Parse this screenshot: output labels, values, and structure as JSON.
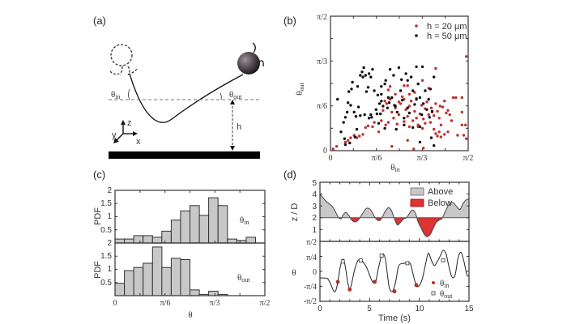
{
  "colors": {
    "red": "#c0302c",
    "red_fill": "#dd3333",
    "black": "#111111",
    "gray_fill": "#c8c8c8",
    "axis": "#333333"
  },
  "panel_a": {
    "label": "(a)",
    "theta_in": "θ",
    "theta_in_sub": "in",
    "theta_out": "θ",
    "theta_out_sub": "out",
    "h_label": "h",
    "axis_x": "x",
    "axis_y": "y",
    "axis_z": "z"
  },
  "chart_data": [
    {
      "id": "b",
      "panel_label": "(b)",
      "type": "scatter",
      "xlabel": "θ",
      "xlabel_sub": "in",
      "ylabel": "θ",
      "ylabel_sub": "out",
      "xlim": [
        0,
        1.5708
      ],
      "ylim": [
        0,
        1.5708
      ],
      "xticks": [
        "0",
        "π/6",
        "π/3",
        "π/2"
      ],
      "yticks": [
        "0",
        "π/6",
        "π/3",
        "π/2"
      ],
      "legend": "top-right",
      "series": [
        {
          "name": "h = 20 μm",
          "color": "#c0302c",
          "points": [
            [
              0.03,
              0.02
            ],
            [
              0.07,
              0.05
            ],
            [
              0.17,
              0.1
            ],
            [
              0.2,
              0.12
            ],
            [
              0.23,
              0.15
            ],
            [
              0.27,
              0.18
            ],
            [
              0.3,
              0.15
            ],
            [
              0.33,
              0.17
            ],
            [
              0.37,
              0.19
            ],
            [
              0.4,
              0.27
            ],
            [
              0.43,
              0.29
            ],
            [
              0.48,
              0.28
            ],
            [
              0.5,
              0.33
            ],
            [
              0.55,
              0.22
            ],
            [
              0.58,
              0.35
            ],
            [
              0.63,
              0.3
            ],
            [
              0.66,
              0.33
            ],
            [
              0.6,
              0.47
            ],
            [
              0.62,
              0.58
            ],
            [
              0.64,
              0.55
            ],
            [
              0.66,
              0.71
            ],
            [
              0.68,
              0.6
            ],
            [
              0.7,
              0.45
            ],
            [
              0.72,
              0.38
            ],
            [
              0.74,
              0.5
            ],
            [
              0.76,
              0.31
            ],
            [
              0.78,
              0.42
            ],
            [
              0.8,
              0.55
            ],
            [
              0.82,
              0.63
            ],
            [
              0.84,
              0.34
            ],
            [
              0.86,
              0.48
            ],
            [
              0.88,
              0.4
            ],
            [
              0.9,
              0.52
            ],
            [
              0.92,
              0.58
            ],
            [
              0.94,
              0.35
            ],
            [
              0.96,
              0.46
            ],
            [
              0.98,
              0.61
            ],
            [
              1.0,
              0.3
            ],
            [
              1.02,
              0.43
            ],
            [
              1.04,
              0.53
            ],
            [
              1.06,
              0.37
            ],
            [
              1.08,
              0.49
            ],
            [
              1.1,
              0.57
            ],
            [
              1.12,
              0.42
            ],
            [
              1.14,
              0.33
            ],
            [
              1.16,
              0.45
            ],
            [
              0.7,
              0.05
            ],
            [
              0.88,
              0.12
            ],
            [
              0.95,
              0.02
            ],
            [
              1.22,
              0.46
            ],
            [
              1.24,
              0.38
            ],
            [
              1.26,
              0.3
            ],
            [
              1.28,
              0.51
            ],
            [
              1.3,
              0.58
            ],
            [
              1.32,
              0.44
            ],
            [
              1.34,
              0.47
            ],
            [
              1.36,
              0.42
            ],
            [
              1.38,
              0.35
            ],
            [
              1.4,
              0.62
            ],
            [
              1.43,
              0.62
            ],
            [
              1.18,
              0.25
            ],
            [
              1.2,
              0.2
            ],
            [
              1.22,
              0.17
            ],
            [
              1.24,
              0.22
            ],
            [
              1.26,
              0.16
            ],
            [
              1.3,
              0.19
            ],
            [
              1.34,
              0.22
            ],
            [
              1.5,
              0.45
            ],
            [
              1.54,
              0.3
            ],
            [
              1.5,
              0.3
            ],
            [
              1.52,
              0.18
            ],
            [
              1.55,
              0.14
            ],
            [
              1.0,
              0.28
            ],
            [
              1.05,
              0.26
            ],
            [
              0.9,
              0.28
            ],
            [
              0.98,
              0.38
            ],
            [
              1.08,
              0.32
            ],
            [
              1.15,
              0.5
            ],
            [
              1.18,
              0.41
            ],
            [
              1.2,
              0.55
            ],
            [
              0.78,
              0.57
            ],
            [
              0.74,
              0.66
            ],
            [
              0.84,
              0.76
            ],
            [
              0.88,
              0.76
            ],
            [
              1.05,
              0.82
            ],
            [
              1.12,
              0.73
            ],
            [
              1.2,
              0.96
            ],
            [
              1.25,
              0.52
            ],
            [
              1.55,
              1.1
            ],
            [
              1.45,
              0.18
            ],
            [
              1.5,
              0.62
            ],
            [
              1.06,
              0.03
            ],
            [
              0.84,
              0.6
            ],
            [
              0.9,
              0.66
            ],
            [
              0.96,
              0.68
            ],
            [
              0.68,
              0.75
            ]
          ]
        },
        {
          "name": "h = 50 μm",
          "color": "#111111",
          "points": [
            [
              0.08,
              0.6
            ],
            [
              0.12,
              0.22
            ],
            [
              0.15,
              0.33
            ],
            [
              0.17,
              0.39
            ],
            [
              0.19,
              0.45
            ],
            [
              0.2,
              0.56
            ],
            [
              0.21,
              0.69
            ],
            [
              0.23,
              0.53
            ],
            [
              0.24,
              0.72
            ],
            [
              0.25,
              0.8
            ],
            [
              0.27,
              0.45
            ],
            [
              0.29,
              0.4
            ],
            [
              0.31,
              0.75
            ],
            [
              0.32,
              0.51
            ],
            [
              0.34,
              0.88
            ],
            [
              0.36,
              0.92
            ],
            [
              0.37,
              0.86
            ],
            [
              0.38,
              0.97
            ],
            [
              0.4,
              0.88
            ],
            [
              0.41,
              0.69
            ],
            [
              0.43,
              0.74
            ],
            [
              0.44,
              0.9
            ],
            [
              0.46,
              0.86
            ],
            [
              0.48,
              0.95
            ],
            [
              0.5,
              0.7
            ],
            [
              0.52,
              0.48
            ],
            [
              0.54,
              0.65
            ],
            [
              0.56,
              0.55
            ],
            [
              0.57,
              0.43
            ],
            [
              0.58,
              0.66
            ],
            [
              0.6,
              0.52
            ],
            [
              0.62,
              0.78
            ],
            [
              0.63,
              0.82
            ],
            [
              0.65,
              0.5
            ],
            [
              0.67,
              0.56
            ],
            [
              0.68,
              0.95
            ],
            [
              0.7,
              0.62
            ],
            [
              0.72,
              0.88
            ],
            [
              0.74,
              0.52
            ],
            [
              0.76,
              0.45
            ],
            [
              0.78,
              0.97
            ],
            [
              0.8,
              0.7
            ],
            [
              0.82,
              0.59
            ],
            [
              0.84,
              0.38
            ],
            [
              0.86,
              0.9
            ],
            [
              0.88,
              0.82
            ],
            [
              0.9,
              0.44
            ],
            [
              0.92,
              0.86
            ],
            [
              0.94,
              0.7
            ],
            [
              0.96,
              0.54
            ],
            [
              0.98,
              0.98
            ],
            [
              1.0,
              0.78
            ],
            [
              1.02,
              0.62
            ],
            [
              1.04,
              0.42
            ],
            [
              1.05,
              0.98
            ],
            [
              1.06,
              0.55
            ],
            [
              1.08,
              0.7
            ],
            [
              1.1,
              0.48
            ],
            [
              1.12,
              0.6
            ],
            [
              1.14,
              0.72
            ],
            [
              1.16,
              0.46
            ],
            [
              1.18,
              0.86
            ],
            [
              0.3,
              0.25
            ],
            [
              0.28,
              0.16
            ],
            [
              0.22,
              0.09
            ],
            [
              0.17,
              0.07
            ],
            [
              0.16,
              0.14
            ],
            [
              0.34,
              0.41
            ],
            [
              0.39,
              0.42
            ],
            [
              0.46,
              0.42
            ],
            [
              0.55,
              0.32
            ],
            [
              0.62,
              0.26
            ],
            [
              0.75,
              0.25
            ],
            [
              0.84,
              0.3
            ],
            [
              0.94,
              0.27
            ],
            [
              1.02,
              0.28
            ],
            [
              1.13,
              0.39
            ],
            [
              1.15,
              0.15
            ],
            [
              1.18,
              0.06
            ],
            [
              0.98,
              0.6
            ],
            [
              0.88,
              0.5
            ],
            [
              0.73,
              0.53
            ],
            [
              0.66,
              0.62
            ],
            [
              0.58,
              0.58
            ],
            [
              1.02,
              0.1
            ],
            [
              0.44,
              0.38
            ],
            [
              0.47,
              0.39
            ],
            [
              0.53,
              0.43
            ],
            [
              0.58,
              0.75
            ],
            [
              0.81,
              0.83
            ]
          ]
        }
      ]
    },
    {
      "id": "c_in",
      "panel_label": "(c)",
      "type": "bar",
      "ylabel": "PDF",
      "annotation": "θ",
      "annotation_sub": "in",
      "xlim": [
        0,
        1.5708
      ],
      "ylim": [
        0,
        2
      ],
      "yticks": [
        "2",
        "1.5",
        "1",
        "0.5",
        "2"
      ],
      "bins": 16,
      "values": [
        0.15,
        0.15,
        0.28,
        0.28,
        0.22,
        0.45,
        0.87,
        1.22,
        1.42,
        1.05,
        1.72,
        1.42,
        0.15,
        0.1,
        0.22,
        0.0
      ]
    },
    {
      "id": "c_out",
      "type": "bar",
      "ylabel": "PDF",
      "annotation": "θ",
      "annotation_sub": "out",
      "xlabel": "θ",
      "xlim": [
        0,
        1.5708
      ],
      "ylim": [
        0,
        2
      ],
      "xticks": [
        "0",
        "π/6",
        "π/3",
        "π/2"
      ],
      "yticks": [
        "1.5",
        "1",
        "0.5"
      ],
      "bins": 16,
      "values": [
        0.47,
        0.95,
        1.07,
        1.23,
        1.85,
        1.07,
        1.42,
        1.37,
        0.22,
        0.05,
        0.17,
        0.05,
        0.0,
        0.0,
        0.0,
        0.0
      ]
    },
    {
      "id": "d_top",
      "panel_label": "(d)",
      "type": "area",
      "ylabel": "z / D",
      "xlim": [
        0,
        15
      ],
      "ylim": [
        0,
        5
      ],
      "yticks": [
        "5",
        "4",
        "3",
        "2",
        "1"
      ],
      "baseline": 2,
      "legend": "top-right",
      "legend_entries": [
        {
          "name": "Above",
          "color": "#c8c8c8"
        },
        {
          "name": "Below",
          "color": "#dd3333"
        }
      ],
      "x": [
        0,
        0.3,
        0.6,
        0.9,
        1.2,
        1.5,
        1.8,
        2.1,
        2.3,
        2.6,
        2.9,
        3.2,
        3.5,
        3.8,
        4.1,
        4.4,
        4.7,
        5.0,
        5.3,
        5.6,
        6.0,
        6.3,
        6.6,
        6.9,
        7.2,
        7.5,
        7.8,
        8.1,
        8.4,
        8.7,
        9.0,
        9.3,
        9.6,
        9.9,
        10.2,
        10.5,
        10.8,
        11.1,
        11.4,
        11.7,
        12.0,
        12.3,
        12.6,
        12.9,
        13.2,
        13.5,
        13.8,
        14.1,
        14.4,
        14.7,
        15.0
      ],
      "y": [
        4.0,
        3.7,
        3.4,
        3.2,
        3.0,
        2.6,
        2.1,
        1.9,
        2.2,
        2.45,
        2.2,
        1.8,
        1.65,
        1.75,
        2.1,
        2.5,
        2.8,
        2.75,
        2.4,
        1.95,
        1.75,
        2.1,
        2.6,
        2.85,
        2.6,
        1.9,
        1.4,
        1.6,
        1.9,
        2.0,
        2.35,
        2.65,
        2.4,
        1.6,
        1.1,
        0.6,
        0.4,
        0.6,
        1.1,
        1.6,
        1.8,
        1.95,
        2.5,
        3.0,
        3.3,
        3.2,
        2.9,
        2.7,
        3.2,
        3.5,
        3.6
      ]
    },
    {
      "id": "d_bottom",
      "type": "line",
      "ylabel": "θ",
      "xlabel": "Time (s)",
      "xlim": [
        0,
        15
      ],
      "ylim": [
        -1.5708,
        1.5708
      ],
      "xticks": [
        "0",
        "5",
        "10",
        "15"
      ],
      "yticks": [
        "π/2",
        "π/4",
        "0",
        "-π/4",
        "-π/2"
      ],
      "legend": "bottom-right",
      "legend_entries": [
        {
          "name": "θ",
          "sub": "in",
          "color": "#c0302c",
          "marker": "circle"
        },
        {
          "name": "θ",
          "sub": "out",
          "color": "#333333",
          "marker": "square"
        }
      ],
      "x": [
        0,
        0.4,
        0.8,
        1.1,
        1.4,
        1.6,
        1.8,
        2.0,
        2.2,
        2.4,
        2.6,
        2.8,
        3.0,
        3.2,
        3.5,
        3.8,
        4.1,
        4.4,
        4.7,
        5.0,
        5.3,
        5.6,
        5.9,
        6.2,
        6.4,
        6.6,
        6.8,
        7.0,
        7.3,
        7.6,
        7.9,
        8.2,
        8.5,
        8.8,
        9.1,
        9.4,
        9.7,
        10.0,
        10.3,
        10.6,
        10.9,
        11.2,
        11.5,
        11.8,
        12.1,
        12.4,
        12.7,
        13.0,
        13.3,
        13.6,
        13.9,
        14.2,
        14.5,
        14.8,
        15.0
      ],
      "y": [
        -0.35,
        -0.35,
        -0.4,
        -0.7,
        -1.05,
        -1.0,
        -0.55,
        0.1,
        0.55,
        0.6,
        0.1,
        -0.6,
        -0.95,
        -0.6,
        0.1,
        0.55,
        0.6,
        0.45,
        0.2,
        -0.2,
        -0.55,
        -0.55,
        0.2,
        0.8,
        0.9,
        0.6,
        -0.2,
        -0.9,
        -1.05,
        -0.6,
        0.25,
        0.4,
        0.42,
        0.45,
        0.4,
        -0.2,
        -0.75,
        -0.75,
        -0.4,
        0.3,
        0.95,
        0.6,
        0.3,
        0.5,
        0.8,
        1.1,
        0.9,
        0.2,
        -0.3,
        -0.2,
        0.7,
        1.0,
        0.5,
        -0.2,
        -0.2
      ],
      "theta_in_points": [
        [
          1.8,
          -0.55
        ],
        [
          3.0,
          -0.95
        ],
        [
          5.5,
          -0.55
        ],
        [
          7.5,
          -1.05
        ],
        [
          9.7,
          -0.72
        ]
      ],
      "theta_out_points": [
        [
          2.3,
          0.52
        ],
        [
          4.1,
          0.57
        ],
        [
          6.2,
          0.82
        ],
        [
          8.8,
          0.43
        ],
        [
          12.4,
          0.58
        ]
      ]
    }
  ]
}
